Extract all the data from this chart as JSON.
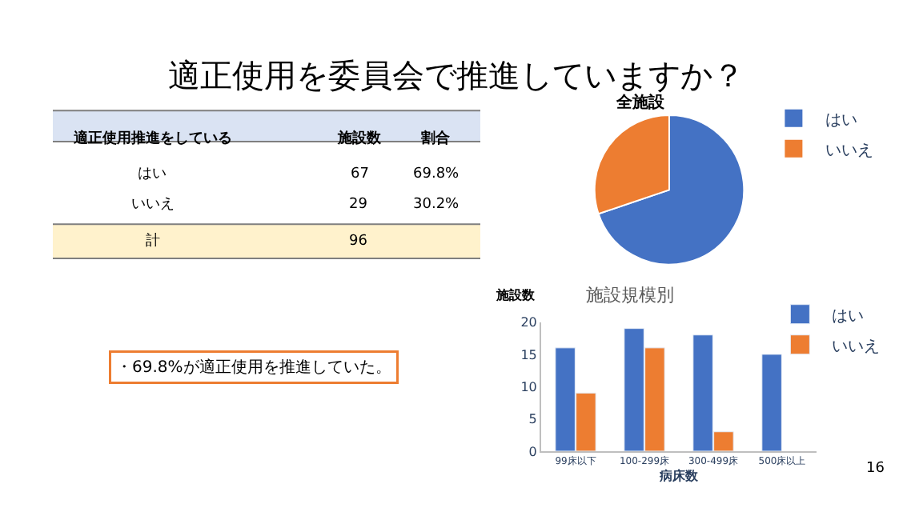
{
  "chart_data": [
    {
      "type": "other",
      "title": "適正使用を委員会で推進していますか？",
      "annotations": [
        "適正使用推進をしている",
        "施設数",
        "割合",
        "はい",
        "67",
        "69.8%",
        "いいえ",
        "29",
        "30.2%",
        "計",
        "96",
        "・69.8%が適正使用を推進していた。",
        "16"
      ]
    },
    {
      "type": "pie",
      "title": "全施設",
      "categories": [
        "はい",
        "いいえ"
      ],
      "values": [
        69.8,
        30.2
      ],
      "colors": [
        "#4472c4",
        "#ed7d31"
      ],
      "legend": "top right"
    },
    {
      "type": "bar",
      "title": "施設規模別",
      "xlabel": "病床数",
      "ylabel": "施設数",
      "categories": [
        "99床以下",
        "100-299床",
        "300-499床",
        "500床以上"
      ],
      "series": [
        {
          "name": "はい",
          "color": "#4472c4",
          "values": [
            16,
            19,
            18,
            15
          ]
        },
        {
          "name": "いいえ",
          "color": "#ed7d31",
          "values": [
            9,
            16,
            3,
            null
          ]
        }
      ],
      "ylim": [
        0,
        20
      ],
      "yticks": [
        0,
        5,
        10,
        15,
        20
      ],
      "legend": "top right"
    }
  ]
}
